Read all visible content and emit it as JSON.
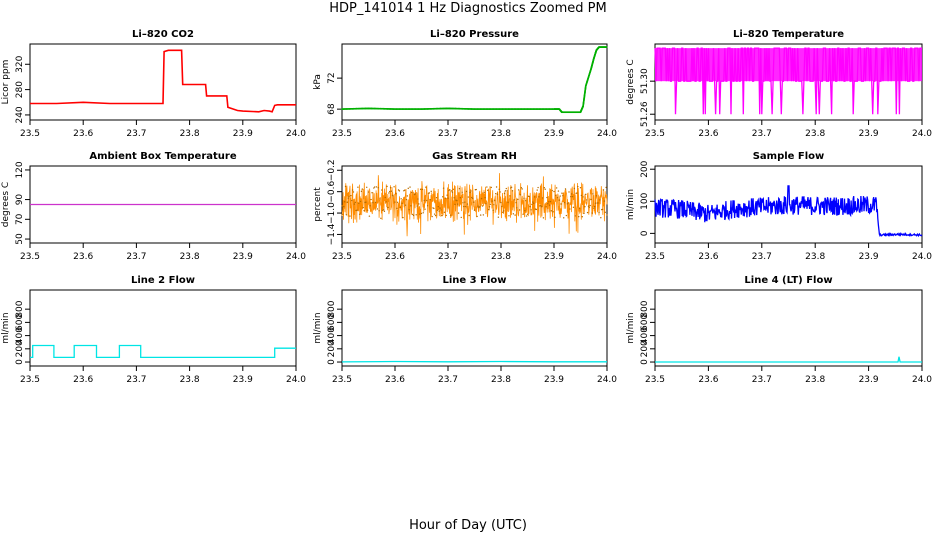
{
  "page": {
    "title": "HDP_141014  1 Hz Diagnostics Zoomed PM",
    "xlabel": "Hour of Day (UTC)"
  },
  "chart_data": [
    {
      "type": "line",
      "title": "Li–820 CO2",
      "ylabel": "Licor ppm",
      "color": "#ff0000",
      "xlim": [
        23.5,
        24.0
      ],
      "ylim": [
        232,
        352
      ],
      "xticks": [
        "23.5",
        "23.6",
        "23.7",
        "23.8",
        "23.9",
        "24.0"
      ],
      "yticks": [
        {
          "v": 240,
          "label": "240"
        },
        {
          "v": 280,
          "label": "280"
        },
        {
          "v": 320,
          "label": "320"
        }
      ],
      "series": [
        {
          "x": [
            23.5,
            23.55,
            23.6,
            23.65,
            23.7,
            23.75,
            23.752,
            23.76,
            23.785,
            23.787,
            23.83,
            23.832,
            23.87,
            23.872,
            23.89,
            23.9,
            23.93,
            23.94,
            23.95,
            23.955,
            23.96,
            23.965,
            23.99,
            24.0
          ],
          "y": [
            258,
            258,
            260,
            258,
            258,
            258,
            340,
            342,
            342,
            288,
            288,
            270,
            270,
            252,
            247,
            246,
            245,
            247,
            246,
            245,
            255,
            256,
            256,
            256
          ]
        }
      ]
    },
    {
      "type": "line",
      "title": "Li–820 Pressure",
      "ylabel": "kPa",
      "color": "#00b000",
      "xlim": [
        23.5,
        24.0
      ],
      "ylim": [
        66.6,
        76.4
      ],
      "xticks": [
        "23.5",
        "23.6",
        "23.7",
        "23.8",
        "23.9",
        "24.0"
      ],
      "yticks": [
        {
          "v": 68,
          "label": "68"
        },
        {
          "v": 72,
          "label": "72"
        }
      ],
      "series": [
        {
          "x": [
            23.5,
            23.55,
            23.6,
            23.65,
            23.7,
            23.75,
            23.8,
            23.85,
            23.9,
            23.91,
            23.915,
            23.95,
            23.955,
            23.96,
            23.97,
            23.975,
            23.98,
            23.985,
            24.0
          ],
          "y": [
            68.0,
            68.1,
            68.0,
            68.0,
            68.1,
            68.0,
            68.0,
            68.0,
            68.0,
            68.0,
            67.6,
            67.6,
            68.4,
            71.0,
            73.2,
            74.5,
            75.6,
            76.0,
            76.0
          ]
        }
      ]
    },
    {
      "type": "line",
      "title": "Li–820 Temperature",
      "ylabel": "degrees C",
      "color": "#ff00ff",
      "xlim": [
        23.5,
        24.0
      ],
      "ylim": [
        51.253,
        51.345
      ],
      "xticks": [
        "23.5",
        "23.6",
        "23.7",
        "23.8",
        "23.9",
        "24.0"
      ],
      "yticks": [
        {
          "v": 51.26,
          "label": "51.26"
        },
        {
          "v": 51.3,
          "label": "51.30"
        }
      ],
      "series": [
        {
          "levels": [
            51.26,
            51.3,
            51.34
          ],
          "note_levels": "signal alternates between 51.30 and 51.34 with dips to 51.26"
        }
      ]
    },
    {
      "type": "line",
      "title": "Ambient Box Temperature",
      "ylabel": "degrees C",
      "color": "#cc33cc",
      "xlim": [
        23.5,
        24.0
      ],
      "ylim": [
        46,
        124
      ],
      "xticks": [
        "23.5",
        "23.6",
        "23.7",
        "23.8",
        "23.9",
        "24.0"
      ],
      "yticks": [
        {
          "v": 50,
          "label": "50"
        },
        {
          "v": 70,
          "label": "70"
        },
        {
          "v": 90,
          "label": "90"
        },
        {
          "v": 120,
          "label": "120"
        }
      ],
      "series": [
        {
          "x": [
            23.5,
            24.0
          ],
          "y": [
            85,
            85
          ]
        }
      ]
    },
    {
      "type": "line",
      "title": "Gas Stream RH",
      "ylabel": "percent",
      "color": "#ff8c00",
      "xlim": [
        23.5,
        24.0
      ],
      "ylim": [
        -1.56,
        -0.12
      ],
      "xticks": [
        "23.5",
        "23.6",
        "23.7",
        "23.8",
        "23.9",
        "24.0"
      ],
      "yticks": [
        {
          "v": -1.4,
          "label": "−1.4"
        },
        {
          "v": -1.0,
          "label": "−1.0"
        },
        {
          "v": -0.6,
          "label": "−0.6"
        },
        {
          "v": -0.2,
          "label": "−0.2"
        }
      ],
      "series": [
        {
          "center": -0.8,
          "range": [
            -1.5,
            -0.15
          ]
        }
      ]
    },
    {
      "type": "line",
      "title": "Sample Flow",
      "ylabel": "ml/min",
      "color": "#0000ff",
      "xlim": [
        23.5,
        24.0
      ],
      "ylim": [
        -30,
        210
      ],
      "xticks": [
        "23.5",
        "23.6",
        "23.7",
        "23.8",
        "23.9",
        "24.0"
      ],
      "yticks": [
        {
          "v": 0,
          "label": "0"
        },
        {
          "v": 100,
          "label": "100"
        },
        {
          "v": 200,
          "label": "200"
        }
      ],
      "series": [
        {
          "x": [
            23.5,
            23.55,
            23.6,
            23.65,
            23.7,
            23.75,
            23.8,
            23.85,
            23.9,
            23.915,
            23.92,
            23.96,
            24.0
          ],
          "y": [
            80,
            75,
            60,
            78,
            82,
            88,
            86,
            85,
            88,
            88,
            -5,
            -3,
            -5
          ]
        }
      ]
    },
    {
      "type": "line",
      "title": "Line 2 Flow",
      "ylabel": "ml/min",
      "color": "#00e5e5",
      "xlim": [
        23.5,
        24.0
      ],
      "ylim": [
        -60,
        1090
      ],
      "xticks": [
        "23.5",
        "23.6",
        "23.7",
        "23.8",
        "23.9",
        "24.0"
      ],
      "yticks": [
        {
          "v": 0,
          "label": "0"
        },
        {
          "v": 200,
          "label": "200"
        },
        {
          "v": 400,
          "label": "400"
        },
        {
          "v": 600,
          "label": "600"
        },
        {
          "v": 800,
          "label": "800"
        }
      ],
      "series": [
        {
          "x": [
            23.5,
            23.505,
            23.545,
            23.583,
            23.625,
            23.668,
            23.708,
            23.96,
            24.0
          ],
          "y": [
            70,
            250,
            70,
            250,
            70,
            250,
            70,
            210,
            210
          ],
          "step": true
        }
      ]
    },
    {
      "type": "line",
      "title": "Line 3 Flow",
      "ylabel": "ml/min",
      "color": "#00e5e5",
      "xlim": [
        23.5,
        24.0
      ],
      "ylim": [
        -60,
        1090
      ],
      "xticks": [
        "23.5",
        "23.6",
        "23.7",
        "23.8",
        "23.9",
        "24.0"
      ],
      "yticks": [
        {
          "v": 0,
          "label": "0"
        },
        {
          "v": 200,
          "label": "200"
        },
        {
          "v": 400,
          "label": "400"
        },
        {
          "v": 600,
          "label": "600"
        },
        {
          "v": 800,
          "label": "800"
        }
      ],
      "series": [
        {
          "x": [
            23.5,
            23.6,
            23.7,
            23.8,
            23.9,
            24.0
          ],
          "y": [
            2,
            8,
            4,
            8,
            4,
            4
          ]
        }
      ]
    },
    {
      "type": "line",
      "title": "Line 4 (LT) Flow",
      "ylabel": "ml/min",
      "color": "#00e5e5",
      "xlim": [
        23.5,
        24.0
      ],
      "ylim": [
        -60,
        1090
      ],
      "xticks": [
        "23.5",
        "23.6",
        "23.7",
        "23.8",
        "23.9",
        "24.0"
      ],
      "yticks": [
        {
          "v": 0,
          "label": "0"
        },
        {
          "v": 200,
          "label": "200"
        },
        {
          "v": 400,
          "label": "400"
        },
        {
          "v": 600,
          "label": "600"
        },
        {
          "v": 800,
          "label": "800"
        }
      ],
      "series": [
        {
          "x": [
            23.5,
            23.955,
            23.957,
            23.959,
            24.0
          ],
          "y": [
            0,
            0,
            80,
            0,
            0
          ]
        }
      ]
    }
  ]
}
